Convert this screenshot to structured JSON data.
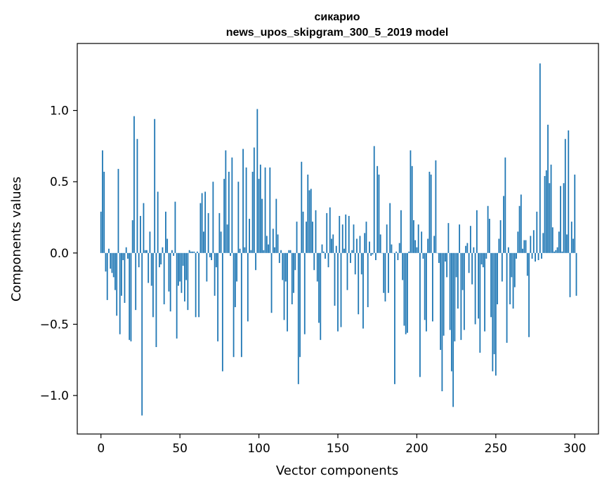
{
  "chart_data": {
    "type": "bar",
    "title": "сикарио",
    "subtitle": "news_upos_skipgram_300_5_2019 model",
    "xlabel": "Vector components",
    "ylabel": "Components values",
    "xlim": [
      -15,
      315
    ],
    "ylim": [
      -1.27,
      1.47
    ],
    "xticks": [
      0,
      50,
      100,
      150,
      200,
      250,
      300
    ],
    "xtick_labels": [
      "0",
      "50",
      "100",
      "150",
      "200",
      "250",
      "300"
    ],
    "yticks": [
      -1.0,
      -0.5,
      0.0,
      0.5,
      1.0
    ],
    "ytick_labels": [
      "−1.0",
      "−0.5",
      "0.0",
      "0.5",
      "1.0"
    ],
    "bar_color": "#1f77b4",
    "grid": false,
    "legend": "none",
    "values": [
      0.29,
      0.72,
      0.57,
      -0.13,
      -0.33,
      0.03,
      -0.11,
      -0.14,
      -0.17,
      -0.26,
      -0.44,
      0.59,
      -0.57,
      -0.3,
      -0.05,
      -0.35,
      0.04,
      -0.04,
      -0.61,
      -0.62,
      0.23,
      0.96,
      -0.4,
      0.8,
      -0.1,
      0.26,
      -1.14,
      0.35,
      0.02,
      0.02,
      -0.21,
      0.15,
      -0.23,
      -0.45,
      0.94,
      -0.66,
      0.43,
      -0.1,
      -0.08,
      0.04,
      -0.36,
      0.29,
      0.1,
      -0.27,
      -0.41,
      0.02,
      -0.02,
      0.36,
      -0.6,
      -0.23,
      -0.2,
      -0.28,
      -0.09,
      -0.34,
      -0.19,
      -0.4,
      0.02,
      0.01,
      0.01,
      0.01,
      -0.45,
      0.01,
      -0.45,
      0.35,
      0.42,
      0.15,
      0.43,
      -0.2,
      0.28,
      -0.03,
      -0.05,
      0.5,
      -0.3,
      -0.1,
      -0.62,
      0.28,
      0.15,
      -0.83,
      0.52,
      0.72,
      0.2,
      0.57,
      -0.02,
      0.67,
      -0.73,
      -0.38,
      -0.2,
      0.5,
      0.03,
      -0.73,
      0.73,
      0.04,
      0.6,
      -0.48,
      0.24,
      0.02,
      0.57,
      0.74,
      -0.12,
      1.01,
      0.52,
      0.62,
      0.38,
      0.02,
      0.6,
      0.12,
      0.06,
      0.6,
      -0.42,
      0.17,
      0.04,
      0.38,
      0.13,
      -0.07,
      0.02,
      -0.19,
      -0.47,
      -0.2,
      -0.55,
      0.02,
      0.02,
      -0.36,
      -0.28,
      -0.12,
      0.22,
      -0.92,
      -0.73,
      0.64,
      0.29,
      -0.57,
      0.22,
      0.55,
      0.44,
      0.45,
      0.22,
      -0.12,
      0.3,
      -0.2,
      -0.49,
      -0.61,
      0.06,
      0.01,
      -0.04,
      0.28,
      -0.1,
      0.32,
      0.1,
      0.13,
      -0.37,
      0.05,
      -0.55,
      0.26,
      -0.52,
      0.2,
      0.03,
      0.27,
      -0.26,
      0.26,
      -0.07,
      0.02,
      0.2,
      -0.15,
      0.1,
      -0.43,
      0.12,
      -0.15,
      -0.53,
      0.14,
      0.22,
      -0.38,
      0.08,
      -0.02,
      -0.01,
      0.75,
      -0.05,
      0.61,
      0.55,
      0.13,
      0.0,
      -0.28,
      -0.34,
      0.2,
      -0.28,
      0.35,
      0.06,
      0.0,
      -0.92,
      0.01,
      -0.05,
      0.07,
      0.3,
      -0.19,
      -0.51,
      -0.57,
      -0.56,
      0.01,
      0.72,
      0.61,
      0.23,
      0.09,
      0.04,
      0.2,
      -0.87,
      0.15,
      -0.04,
      -0.47,
      -0.55,
      0.1,
      0.57,
      0.55,
      -0.48,
      0.12,
      0.65,
      0.0,
      -0.07,
      -0.68,
      -0.97,
      -0.58,
      -0.06,
      -0.17,
      0.21,
      -0.54,
      -0.83,
      -1.08,
      -0.62,
      -0.17,
      -0.39,
      0.2,
      -0.61,
      -0.26,
      -0.54,
      0.05,
      0.07,
      -0.14,
      0.19,
      -0.22,
      0.04,
      -0.5,
      0.3,
      -0.46,
      -0.7,
      -0.08,
      -0.1,
      -0.55,
      -0.04,
      0.33,
      0.24,
      -0.45,
      -0.83,
      -0.71,
      -0.86,
      -0.36,
      0.1,
      0.23,
      -0.2,
      0.4,
      0.67,
      -0.63,
      0.04,
      -0.36,
      -0.17,
      -0.39,
      -0.24,
      -0.04,
      0.15,
      0.33,
      0.41,
      0.03,
      0.09,
      0.09,
      -0.16,
      -0.59,
      0.12,
      -0.04,
      0.16,
      -0.06,
      0.29,
      -0.05,
      1.33,
      -0.04,
      0.14,
      0.54,
      0.58,
      0.9,
      0.49,
      0.62,
      0.18,
      0.01,
      0.02,
      0.04,
      0.15,
      0.47,
      0.01,
      0.49,
      0.8,
      0.13,
      0.86,
      -0.31,
      0.22,
      0.1,
      0.55,
      -0.3
    ]
  }
}
